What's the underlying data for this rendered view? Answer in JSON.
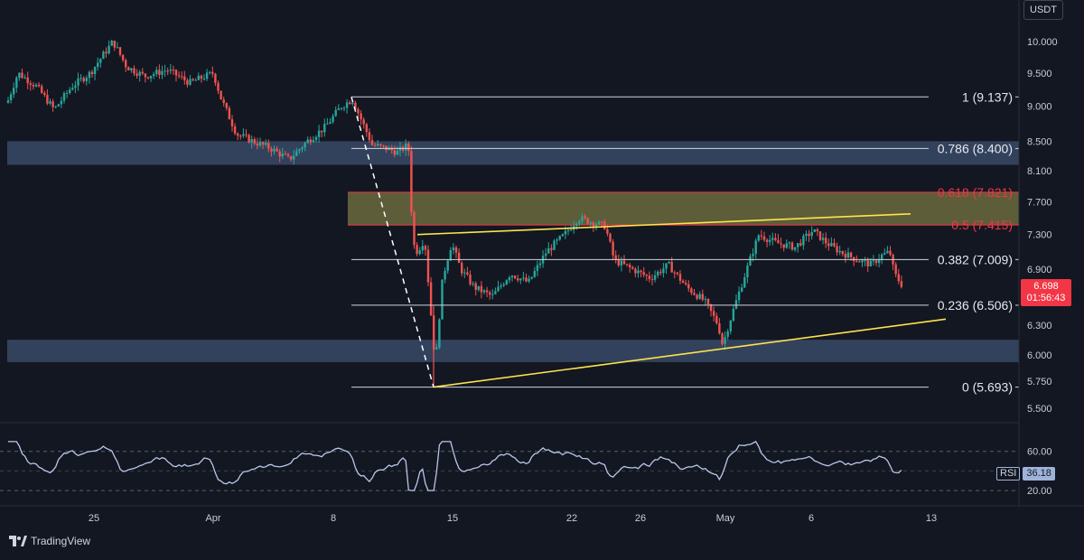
{
  "chart_data": {
    "type": "candlestick",
    "symbol_currency": "USDT",
    "price_axis": {
      "scale": "log",
      "ticks": [
        "10.000",
        "9.500",
        "9.000",
        "8.500",
        "8.100",
        "7.700",
        "7.300",
        "6.900",
        "6.300",
        "6.000",
        "5.750",
        "5.500"
      ]
    },
    "x_axis": {
      "ticks": [
        "25",
        "Apr",
        "8",
        "15",
        "22",
        "26",
        "May",
        "6",
        "13"
      ]
    },
    "current_price": "6.698",
    "countdown": "01:56:43",
    "fibonacci": [
      {
        "label": "1 (9.137)",
        "value": 9.137,
        "color": "#ffffff"
      },
      {
        "label": "0.786 (8.400)",
        "value": 8.4,
        "color": "#ffffff"
      },
      {
        "label": "0.618 (7.821)",
        "value": 7.821,
        "color": "#f23645"
      },
      {
        "label": "0.5 (7.415)",
        "value": 7.415,
        "color": "#f23645"
      },
      {
        "label": "0.382 (7.009)",
        "value": 7.009,
        "color": "#ffffff"
      },
      {
        "label": "0.236 (6.506)",
        "value": 6.506,
        "color": "#ffffff"
      },
      {
        "label": "0 (5.693)",
        "value": 5.693,
        "color": "#ffffff"
      }
    ],
    "zones": [
      {
        "name": "resistance-zone",
        "top": 8.5,
        "bottom": 8.18,
        "color": "#3c4e6c"
      },
      {
        "name": "fib-golden-zone",
        "top": 7.821,
        "bottom": 7.415,
        "color": "#6b6a3e"
      },
      {
        "name": "support-zone",
        "top": 6.15,
        "bottom": 5.93,
        "color": "#3c4e6c"
      }
    ],
    "trendlines": [
      {
        "name": "upper-wedge-line",
        "from": [
          0.382,
          7.3
        ],
        "to": [
          0.84,
          7.55
        ],
        "color": "#ffe34d"
      },
      {
        "name": "lower-wedge-line",
        "from": [
          0.4,
          5.7
        ],
        "to": [
          0.873,
          6.36
        ],
        "color": "#ffe34d"
      }
    ],
    "rsi": {
      "label": "RSI",
      "value": "36.18",
      "ticks": [
        "60.00",
        "20.00"
      ]
    },
    "colors": {
      "up": "#26a69a",
      "down": "#ef5350",
      "background": "#131722",
      "grid": "#2a2e39"
    }
  },
  "branding": {
    "name": "TradingView"
  }
}
